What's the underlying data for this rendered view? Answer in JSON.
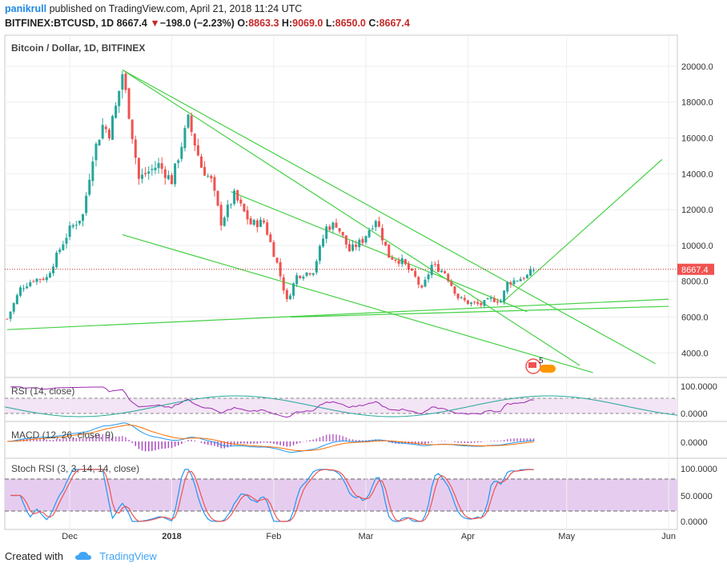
{
  "header": {
    "user": "panikrull",
    "published_text": "published on TradingView.com, April 21, 2018 11:24 UTC",
    "symbol": "BITFINEX:BTCUSD, 1D",
    "last": "8667.4",
    "change_arrow": "▼",
    "change": "−198.0 (−2.23%)",
    "o_label": "O:",
    "o_value": "8863.3",
    "h_label": "H:",
    "h_value": "9069.0",
    "l_label": "L:",
    "l_value": "8650.0",
    "c_label": "C:",
    "c_value": "8667.4"
  },
  "main_pane": {
    "title": "Bitcoin / Dollar, 1D, BITFINEX",
    "price_axis": [
      "20000.0",
      "18000.0",
      "16000.0",
      "14000.0",
      "12000.0",
      "10000.0",
      "8000.0",
      "6000.0",
      "4000.0"
    ],
    "last_price_tag": "8667.4",
    "event_badge": "5"
  },
  "rsi_pane": {
    "title": "RSI (14, close)",
    "axis": [
      "100.0000",
      "0.0000"
    ]
  },
  "macd_pane": {
    "title": "MACD (12, 26, close, 9)",
    "axis": [
      "0.0000"
    ]
  },
  "stoch_pane": {
    "title": "Stoch RSI (3, 3, 14, 14, close)",
    "axis": [
      "100.0000",
      "50.0000",
      "0.0000"
    ]
  },
  "time_axis": [
    "Dec",
    "2018",
    "Feb",
    "Mar",
    "Apr",
    "May",
    "Jun"
  ],
  "footer": {
    "created_with": "Created with",
    "brand": "TradingView"
  },
  "colors": {
    "up": "#26a69a",
    "down": "#ef5350",
    "trendline": "#44d144",
    "rsi": "#9c27b0",
    "band": "#f3e5f5",
    "stoch_band": "#e1bee7",
    "macd": "#2196f3",
    "signal": "#ff6d00",
    "link": "#1e88e5"
  },
  "chart_data": {
    "type": "candlestick",
    "title": "Bitcoin / Dollar, 1D, BITFINEX",
    "xlabel": "",
    "ylabel": "",
    "ylim": [
      2800,
      21000
    ],
    "date_range": [
      "2017-11-12",
      "2018-04-21"
    ],
    "close_path": [
      [
        "2017-11-12",
        5900
      ],
      [
        "2017-11-16",
        7600
      ],
      [
        "2017-11-20",
        8100
      ],
      [
        "2017-11-24",
        8200
      ],
      [
        "2017-11-28",
        9800
      ],
      [
        "2017-12-01",
        10900
      ],
      [
        "2017-12-05",
        11700
      ],
      [
        "2017-12-08",
        15000
      ],
      [
        "2017-12-11",
        16700
      ],
      [
        "2017-12-13",
        16300
      ],
      [
        "2017-12-15",
        17700
      ],
      [
        "2017-12-17",
        19600
      ],
      [
        "2017-12-19",
        17400
      ],
      [
        "2017-12-22",
        13700
      ],
      [
        "2017-12-24",
        14000
      ],
      [
        "2017-12-28",
        14500
      ],
      [
        "2018-01-01",
        13600
      ],
      [
        "2018-01-06",
        17000
      ],
      [
        "2018-01-10",
        14400
      ],
      [
        "2018-01-13",
        13600
      ],
      [
        "2018-01-16",
        11300
      ],
      [
        "2018-01-20",
        12800
      ],
      [
        "2018-01-25",
        11200
      ],
      [
        "2018-01-29",
        11300
      ],
      [
        "2018-02-02",
        9000
      ],
      [
        "2018-02-05",
        6900
      ],
      [
        "2018-02-08",
        8300
      ],
      [
        "2018-02-13",
        8600
      ],
      [
        "2018-02-17",
        11000
      ],
      [
        "2018-02-20",
        11200
      ],
      [
        "2018-02-24",
        9700
      ],
      [
        "2018-02-28",
        10300
      ],
      [
        "2018-03-04",
        11500
      ],
      [
        "2018-03-08",
        9400
      ],
      [
        "2018-03-12",
        9100
      ],
      [
        "2018-03-16",
        8200
      ],
      [
        "2018-03-18",
        7500
      ],
      [
        "2018-03-21",
        8900
      ],
      [
        "2018-03-25",
        8500
      ],
      [
        "2018-03-29",
        7100
      ],
      [
        "2018-04-01",
        6800
      ],
      [
        "2018-04-05",
        6700
      ],
      [
        "2018-04-08",
        7000
      ],
      [
        "2018-04-11",
        6900
      ],
      [
        "2018-04-13",
        7900
      ],
      [
        "2018-04-16",
        8100
      ],
      [
        "2018-04-19",
        8300
      ],
      [
        "2018-04-21",
        8667.4
      ]
    ],
    "annotations": {
      "last_price": 8667.4,
      "trendlines": [
        {
          "from": [
            "2017-12-17",
            19800
          ],
          "to": [
            "2018-05-05",
            3300
          ]
        },
        {
          "from": [
            "2017-12-17",
            19800
          ],
          "to": [
            "2018-05-28",
            3400
          ]
        },
        {
          "from": [
            "2018-01-19",
            13000
          ],
          "to": [
            "2018-04-19",
            6300
          ]
        },
        {
          "from": [
            "2017-11-12",
            5300
          ],
          "to": [
            "2018-06-01",
            7000
          ]
        },
        {
          "from": [
            "2018-02-06",
            6000
          ],
          "to": [
            "2018-06-01",
            6600
          ]
        },
        {
          "from": [
            "2017-12-17",
            10600
          ],
          "to": [
            "2018-05-09",
            2900
          ]
        },
        {
          "from": [
            "2018-04-12",
            6900
          ],
          "to": [
            "2018-05-30",
            14800
          ]
        }
      ]
    },
    "indicators": [
      {
        "name": "RSI (14, close)",
        "ylim": [
          0,
          100
        ],
        "bands": [
          30,
          70
        ]
      },
      {
        "name": "MACD (12, 26, close, 9)"
      },
      {
        "name": "Stoch RSI (3, 3, 14, 14, close)",
        "ylim": [
          0,
          100
        ],
        "bands": [
          20,
          80
        ]
      }
    ]
  }
}
